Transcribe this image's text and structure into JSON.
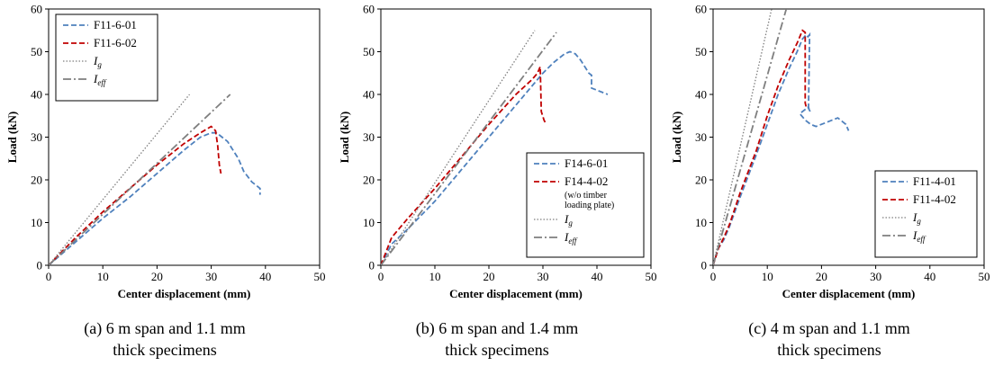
{
  "chart_data": [
    {
      "type": "line",
      "panel": "a",
      "caption_lines": [
        "(a) 6 m span and 1.1 mm",
        "thick specimens"
      ],
      "xlabel": "Center displacement (mm)",
      "ylabel": "Load (kN)",
      "xlim": [
        0,
        50
      ],
      "ylim": [
        0,
        60
      ],
      "xticks": [
        0,
        10,
        20,
        30,
        40,
        50
      ],
      "yticks": [
        0,
        10,
        20,
        30,
        40,
        50,
        60
      ],
      "grid": false,
      "legend_position": "top-left",
      "series": [
        {
          "name": "F11-6-01",
          "label_parts": [
            "F11-6-01"
          ],
          "color": "#4f81bd",
          "dash": "dashed",
          "x": [
            0,
            5,
            10,
            15,
            20,
            25,
            28,
            30,
            31,
            32,
            33,
            34,
            35,
            36,
            37.5,
            39,
            39
          ],
          "y": [
            0,
            5.5,
            11,
            16,
            21.5,
            27,
            30,
            31,
            31,
            30,
            29,
            27,
            25,
            22,
            19.5,
            18,
            16.5
          ]
        },
        {
          "name": "F11-6-02",
          "label_parts": [
            "F11-6-02"
          ],
          "color": "#c00000",
          "dash": "dashed",
          "x": [
            0,
            5,
            10,
            15,
            20,
            25,
            28,
            30,
            30.8,
            31.2,
            31.5,
            31.8
          ],
          "y": [
            0,
            6.5,
            12.5,
            18,
            23.5,
            28.5,
            31,
            32.5,
            31.5,
            28,
            23.5,
            21.5
          ]
        },
        {
          "name": "Ig",
          "label_parts": [
            "I",
            "g"
          ],
          "color": "#7f7f7f",
          "dash": "dotted",
          "x": [
            0,
            26
          ],
          "y": [
            0,
            40
          ]
        },
        {
          "name": "Ieff",
          "label_parts": [
            "I",
            "eff"
          ],
          "color": "#7f7f7f",
          "dash": "dashdot",
          "x": [
            0,
            33.5
          ],
          "y": [
            0,
            40
          ]
        }
      ]
    },
    {
      "type": "line",
      "panel": "b",
      "caption_lines": [
        "(b) 6 m span and 1.4 mm",
        "thick specimens"
      ],
      "xlabel": "Center displacement (mm)",
      "ylabel": "Load (kN)",
      "xlim": [
        0,
        50
      ],
      "ylim": [
        0,
        60
      ],
      "xticks": [
        0,
        10,
        20,
        30,
        40,
        50
      ],
      "yticks": [
        0,
        10,
        20,
        30,
        40,
        50,
        60
      ],
      "grid": false,
      "legend_position": "bottom-right",
      "series": [
        {
          "name": "F14-6-01",
          "label_parts": [
            "F14-6-01"
          ],
          "color": "#4f81bd",
          "dash": "dashed",
          "x": [
            0,
            2,
            5,
            10,
            15,
            20,
            25,
            28,
            30,
            32,
            34,
            35,
            36,
            37,
            38,
            38.5,
            39,
            39,
            40,
            42
          ],
          "y": [
            0,
            5,
            8.5,
            15,
            22.5,
            30,
            37.5,
            42,
            45,
            47.5,
            49.5,
            50,
            49.5,
            48,
            46,
            45,
            44.5,
            41.5,
            41,
            40
          ]
        },
        {
          "name": "F14-4-02",
          "label_parts": [
            "F14-4-02"
          ],
          "color": "#c00000",
          "dash": "dashed",
          "x": [
            0,
            2,
            5,
            10,
            15,
            20,
            25,
            28,
            29,
            29.5,
            29.7,
            30.2,
            30.6
          ],
          "y": [
            0,
            6.5,
            11,
            18,
            25.5,
            33,
            40,
            43.5,
            45,
            46.5,
            36,
            34,
            33
          ]
        },
        {
          "name": "Ig",
          "label_parts": [
            "I",
            "g"
          ],
          "color": "#7f7f7f",
          "dash": "dotted",
          "x": [
            0,
            28.5
          ],
          "y": [
            0,
            55
          ]
        },
        {
          "name": "Ieff",
          "label_parts": [
            "I",
            "eff"
          ],
          "color": "#7f7f7f",
          "dash": "dashdot",
          "x": [
            0,
            32.5
          ],
          "y": [
            0,
            54.5
          ]
        }
      ],
      "legend_note_lines": [
        "(w/o timber",
        "loading plate)"
      ]
    },
    {
      "type": "line",
      "panel": "c",
      "caption_lines": [
        "(c) 4 m span and 1.1 mm",
        "thick specimens"
      ],
      "xlabel": "Center displacement (mm)",
      "ylabel": "Load (kN)",
      "xlim": [
        0,
        50
      ],
      "ylim": [
        0,
        60
      ],
      "xticks": [
        0,
        10,
        20,
        30,
        40,
        50
      ],
      "yticks": [
        0,
        10,
        20,
        30,
        40,
        50,
        60
      ],
      "grid": false,
      "legend_position": "bottom-right",
      "series": [
        {
          "name": "F11-4-01",
          "label_parts": [
            "F11-4-01"
          ],
          "color": "#4f81bd",
          "dash": "dashed",
          "x": [
            0,
            1,
            2,
            3,
            5,
            8,
            10,
            12,
            14,
            15.5,
            16.5,
            17.2,
            17.5,
            17.8,
            17.6,
            17.9,
            17.5,
            16,
            17,
            18,
            19,
            21,
            23,
            24.5,
            25
          ],
          "y": [
            0,
            4,
            6,
            9,
            16,
            26,
            33,
            40,
            46,
            50,
            53,
            54,
            53.5,
            54,
            37,
            36,
            37,
            35.5,
            34,
            33,
            32.5,
            33.5,
            34.5,
            33,
            31.5
          ]
        },
        {
          "name": "F11-4-02",
          "label_parts": [
            "F11-4-02"
          ],
          "color": "#c00000",
          "dash": "dashed",
          "x": [
            0,
            1,
            2,
            3,
            5,
            8,
            10,
            12,
            14,
            15.5,
            16.5,
            17,
            17,
            17.2
          ],
          "y": [
            0,
            4,
            6.5,
            9.5,
            17,
            27,
            35,
            42,
            48,
            52,
            55,
            54.5,
            38,
            37
          ]
        },
        {
          "name": "Ig",
          "label_parts": [
            "I",
            "g"
          ],
          "color": "#7f7f7f",
          "dash": "dotted",
          "x": [
            0,
            10.8
          ],
          "y": [
            0,
            60
          ]
        },
        {
          "name": "Ieff",
          "label_parts": [
            "I",
            "eff"
          ],
          "color": "#7f7f7f",
          "dash": "dashdot",
          "x": [
            0,
            13.5
          ],
          "y": [
            0,
            60
          ]
        }
      ]
    }
  ]
}
